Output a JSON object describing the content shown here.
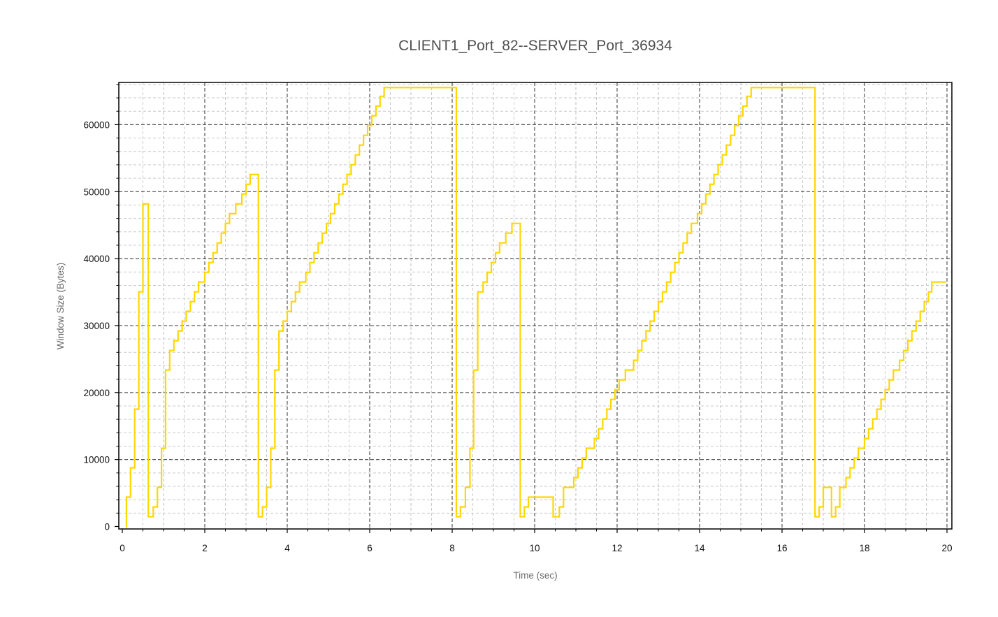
{
  "chart_data": {
    "type": "line",
    "step": true,
    "title": "CLIENT1_Port_82--SERVER_Port_36934",
    "xlabel": "Time (sec)",
    "ylabel": "Window Size (Bytes)",
    "xlim": [
      -0.1,
      20.15
    ],
    "ylim": [
      -600,
      66300
    ],
    "xticks": [
      0,
      2,
      4,
      6,
      8,
      10,
      12,
      14,
      16,
      18,
      20
    ],
    "yticks": [
      0,
      10000,
      20000,
      30000,
      40000,
      50000,
      60000
    ],
    "grid": true,
    "legend": "none",
    "series": [
      {
        "color": "#FFD700",
        "points": [
          [
            0.08,
            0
          ],
          [
            0.1,
            4380
          ],
          [
            0.2,
            8760
          ],
          [
            0.3,
            17520
          ],
          [
            0.4,
            35040
          ],
          [
            0.5,
            48180
          ],
          [
            0.63,
            1460
          ],
          [
            0.75,
            2920
          ],
          [
            0.85,
            5840
          ],
          [
            0.95,
            11680
          ],
          [
            1.05,
            23360
          ],
          [
            1.15,
            26280
          ],
          [
            1.25,
            27740
          ],
          [
            1.35,
            29200
          ],
          [
            1.45,
            30660
          ],
          [
            1.55,
            32120
          ],
          [
            1.65,
            33580
          ],
          [
            1.75,
            35040
          ],
          [
            1.85,
            36500
          ],
          [
            2.0,
            37960
          ],
          [
            2.1,
            39420
          ],
          [
            2.2,
            40880
          ],
          [
            2.3,
            42340
          ],
          [
            2.4,
            43800
          ],
          [
            2.5,
            45260
          ],
          [
            2.6,
            46720
          ],
          [
            2.75,
            48180
          ],
          [
            2.9,
            49640
          ],
          [
            3.0,
            51100
          ],
          [
            3.1,
            52560
          ],
          [
            3.3,
            1460
          ],
          [
            3.4,
            2920
          ],
          [
            3.5,
            5840
          ],
          [
            3.6,
            11680
          ],
          [
            3.7,
            23360
          ],
          [
            3.8,
            29200
          ],
          [
            3.9,
            30660
          ],
          [
            4.0,
            32120
          ],
          [
            4.1,
            33580
          ],
          [
            4.2,
            35040
          ],
          [
            4.3,
            36500
          ],
          [
            4.45,
            37960
          ],
          [
            4.55,
            39420
          ],
          [
            4.65,
            40880
          ],
          [
            4.75,
            42340
          ],
          [
            4.85,
            43800
          ],
          [
            4.95,
            45260
          ],
          [
            5.05,
            46720
          ],
          [
            5.15,
            48180
          ],
          [
            5.25,
            49640
          ],
          [
            5.35,
            51100
          ],
          [
            5.45,
            52560
          ],
          [
            5.55,
            54020
          ],
          [
            5.65,
            55480
          ],
          [
            5.75,
            56940
          ],
          [
            5.85,
            58400
          ],
          [
            5.95,
            59860
          ],
          [
            6.05,
            61320
          ],
          [
            6.15,
            62780
          ],
          [
            6.25,
            64240
          ],
          [
            6.35,
            65535
          ],
          [
            8.1,
            1460
          ],
          [
            8.2,
            2920
          ],
          [
            8.32,
            5840
          ],
          [
            8.43,
            11680
          ],
          [
            8.52,
            23360
          ],
          [
            8.62,
            35040
          ],
          [
            8.75,
            36500
          ],
          [
            8.85,
            37960
          ],
          [
            8.95,
            39420
          ],
          [
            9.05,
            40880
          ],
          [
            9.15,
            42340
          ],
          [
            9.3,
            43800
          ],
          [
            9.45,
            45260
          ],
          [
            9.65,
            1460
          ],
          [
            9.75,
            2920
          ],
          [
            9.85,
            4380
          ],
          [
            10.45,
            1460
          ],
          [
            10.6,
            2920
          ],
          [
            10.7,
            5840
          ],
          [
            10.95,
            7300
          ],
          [
            11.05,
            8760
          ],
          [
            11.15,
            10220
          ],
          [
            11.25,
            11680
          ],
          [
            11.45,
            13140
          ],
          [
            11.55,
            14600
          ],
          [
            11.65,
            16060
          ],
          [
            11.75,
            17520
          ],
          [
            11.85,
            18980
          ],
          [
            11.95,
            20440
          ],
          [
            12.05,
            21900
          ],
          [
            12.2,
            23360
          ],
          [
            12.4,
            24820
          ],
          [
            12.5,
            26280
          ],
          [
            12.6,
            27740
          ],
          [
            12.7,
            29200
          ],
          [
            12.8,
            30660
          ],
          [
            12.9,
            32120
          ],
          [
            13.0,
            33580
          ],
          [
            13.1,
            35040
          ],
          [
            13.2,
            36500
          ],
          [
            13.3,
            37960
          ],
          [
            13.4,
            39420
          ],
          [
            13.5,
            40880
          ],
          [
            13.6,
            42340
          ],
          [
            13.7,
            43800
          ],
          [
            13.8,
            45260
          ],
          [
            13.95,
            46720
          ],
          [
            14.05,
            48180
          ],
          [
            14.15,
            49640
          ],
          [
            14.25,
            51100
          ],
          [
            14.35,
            52560
          ],
          [
            14.45,
            54020
          ],
          [
            14.55,
            55480
          ],
          [
            14.65,
            56940
          ],
          [
            14.75,
            58400
          ],
          [
            14.85,
            59860
          ],
          [
            14.95,
            61320
          ],
          [
            15.05,
            62780
          ],
          [
            15.15,
            64240
          ],
          [
            15.25,
            65535
          ],
          [
            16.8,
            1460
          ],
          [
            16.9,
            2920
          ],
          [
            17.0,
            5840
          ],
          [
            17.2,
            1460
          ],
          [
            17.3,
            2920
          ],
          [
            17.4,
            5840
          ],
          [
            17.55,
            7300
          ],
          [
            17.65,
            8760
          ],
          [
            17.75,
            10220
          ],
          [
            17.85,
            11680
          ],
          [
            18.0,
            13140
          ],
          [
            18.1,
            14600
          ],
          [
            18.2,
            16060
          ],
          [
            18.3,
            17520
          ],
          [
            18.4,
            18980
          ],
          [
            18.5,
            20440
          ],
          [
            18.6,
            21900
          ],
          [
            18.7,
            23360
          ],
          [
            18.85,
            24820
          ],
          [
            18.95,
            26280
          ],
          [
            19.05,
            27740
          ],
          [
            19.15,
            29200
          ],
          [
            19.25,
            30660
          ],
          [
            19.35,
            32120
          ],
          [
            19.45,
            33580
          ],
          [
            19.55,
            35040
          ],
          [
            19.63,
            36500
          ]
        ],
        "x_end": 19.98
      }
    ]
  }
}
